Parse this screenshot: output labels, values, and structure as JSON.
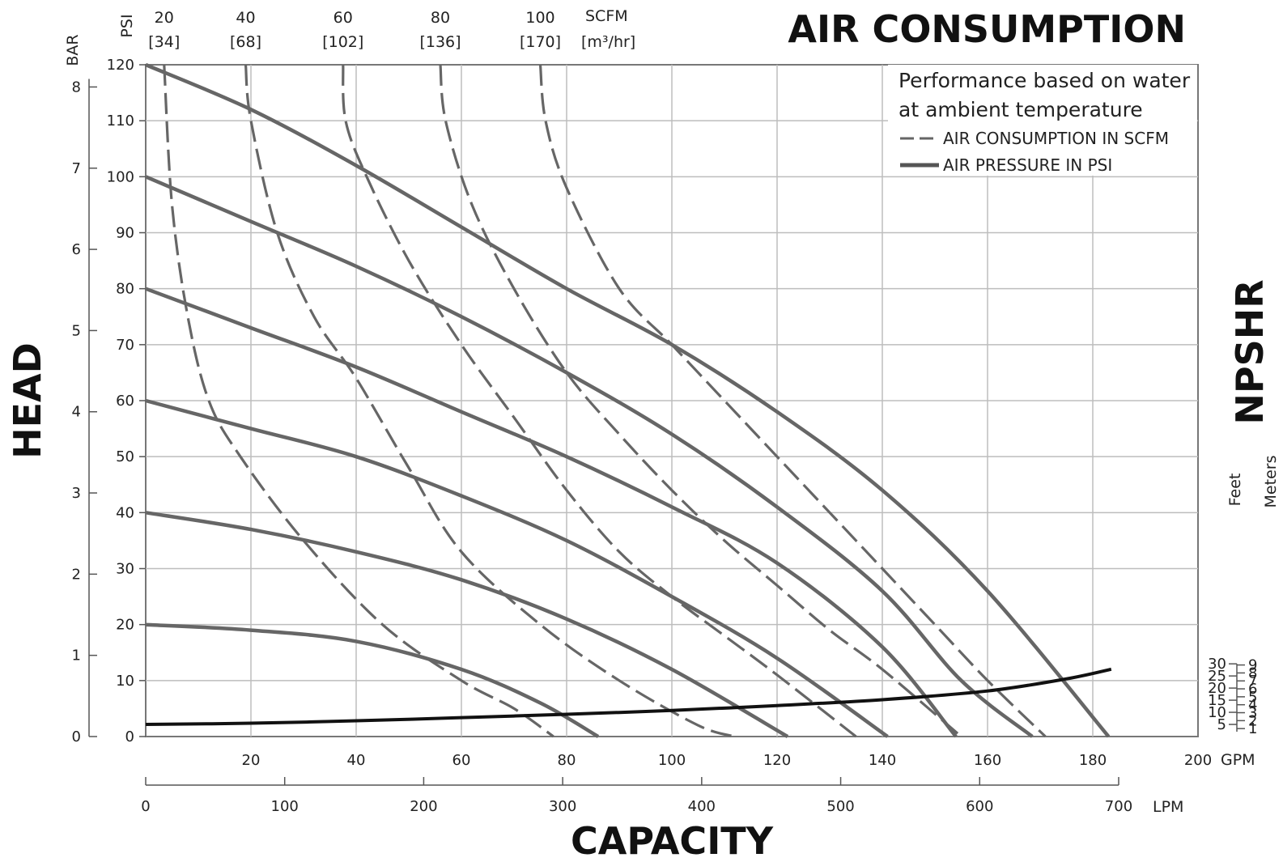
{
  "chart_data": {
    "type": "line",
    "title": "AIR CONSUMPTION",
    "note_lines": [
      "Performance based on water",
      "at ambient temperature"
    ],
    "legend": {
      "dashed": "AIR CONSUMPTION IN SCFM",
      "solid": "AIR PRESSURE IN PSI"
    },
    "xlabel": "CAPACITY",
    "ylabel": "HEAD",
    "right_label": "NPSHR",
    "x_axis_gpm": {
      "unit": "GPM",
      "ticks": [
        "20",
        "40",
        "60",
        "80",
        "100",
        "120",
        "140",
        "160",
        "180",
        "200"
      ]
    },
    "x_axis_lpm": {
      "unit": "LPM",
      "ticks": [
        "0",
        "100",
        "200",
        "300",
        "400",
        "500",
        "600",
        "700"
      ]
    },
    "y_axis_psi": {
      "unit": "PSI",
      "ticks": [
        "0",
        "10",
        "20",
        "30",
        "40",
        "50",
        "60",
        "70",
        "80",
        "90",
        "100",
        "110",
        "120"
      ]
    },
    "y_axis_bar": {
      "unit": "BAR",
      "ticks": [
        "0",
        "1",
        "2",
        "3",
        "4",
        "5",
        "6",
        "7",
        "8"
      ]
    },
    "npshr_feet": {
      "unit": "Feet",
      "ticks": [
        "5",
        "10",
        "15",
        "20",
        "25",
        "30"
      ]
    },
    "npshr_meters": {
      "unit": "Meters",
      "ticks": [
        "1",
        "2",
        "3",
        "4",
        "5",
        "6",
        "7",
        "8",
        "9"
      ]
    },
    "scfm_top": {
      "unit_top": "SCFM",
      "unit_bottom": "[m³/hr]",
      "labels": [
        {
          "scfm": "20",
          "m3hr": "[34]"
        },
        {
          "scfm": "40",
          "m3hr": "[68]"
        },
        {
          "scfm": "60",
          "m3hr": "[102]"
        },
        {
          "scfm": "80",
          "m3hr": "[136]"
        },
        {
          "scfm": "100",
          "m3hr": "[170]"
        }
      ]
    },
    "xlim_gpm": [
      0,
      200
    ],
    "ylim_psi": [
      0,
      120
    ],
    "pressure_series": [
      {
        "name": "120",
        "points": [
          [
            0,
            120
          ],
          [
            20,
            112
          ],
          [
            40,
            102
          ],
          [
            60,
            91
          ],
          [
            80,
            80
          ],
          [
            100,
            70
          ],
          [
            120,
            58
          ],
          [
            140,
            44
          ],
          [
            160,
            26
          ],
          [
            183,
            0
          ]
        ]
      },
      {
        "name": "100",
        "points": [
          [
            0,
            100
          ],
          [
            20,
            92
          ],
          [
            40,
            84
          ],
          [
            60,
            75
          ],
          [
            80,
            65
          ],
          [
            100,
            54
          ],
          [
            120,
            41
          ],
          [
            140,
            26
          ],
          [
            155,
            10
          ],
          [
            168.5,
            0
          ]
        ]
      },
      {
        "name": "80",
        "points": [
          [
            0,
            80
          ],
          [
            20,
            73
          ],
          [
            40,
            66
          ],
          [
            60,
            58
          ],
          [
            80,
            50
          ],
          [
            100,
            41
          ],
          [
            120,
            31
          ],
          [
            140,
            16
          ],
          [
            154,
            0
          ]
        ]
      },
      {
        "name": "60",
        "points": [
          [
            0,
            60
          ],
          [
            20,
            55
          ],
          [
            40,
            50
          ],
          [
            60,
            43
          ],
          [
            80,
            35
          ],
          [
            100,
            25
          ],
          [
            120,
            14
          ],
          [
            141,
            0
          ]
        ]
      },
      {
        "name": "40",
        "points": [
          [
            0,
            40
          ],
          [
            20,
            37
          ],
          [
            40,
            33
          ],
          [
            60,
            28
          ],
          [
            80,
            21
          ],
          [
            100,
            12
          ],
          [
            122,
            0
          ]
        ]
      },
      {
        "name": "20",
        "points": [
          [
            0,
            20
          ],
          [
            20,
            19
          ],
          [
            40,
            17
          ],
          [
            60,
            12
          ],
          [
            75,
            6
          ],
          [
            86,
            0
          ]
        ]
      }
    ],
    "consumption_series": [
      {
        "name": "20",
        "points": [
          [
            3.5,
            120
          ],
          [
            5,
            95
          ],
          [
            8,
            75
          ],
          [
            12,
            60
          ],
          [
            18,
            50
          ],
          [
            30,
            35
          ],
          [
            45,
            20
          ],
          [
            60,
            10
          ],
          [
            70,
            5
          ],
          [
            77.5,
            0
          ]
        ]
      },
      {
        "name": "40",
        "points": [
          [
            19,
            120
          ],
          [
            20,
            110
          ],
          [
            25,
            90
          ],
          [
            32,
            75
          ],
          [
            40,
            64
          ],
          [
            50,
            48
          ],
          [
            60,
            33
          ],
          [
            75,
            20
          ],
          [
            90,
            10
          ],
          [
            105,
            2
          ],
          [
            112,
            0
          ]
        ]
      },
      {
        "name": "60",
        "points": [
          [
            37.5,
            120
          ],
          [
            38,
            110
          ],
          [
            42,
            100
          ],
          [
            50,
            85
          ],
          [
            60,
            70
          ],
          [
            70,
            57
          ],
          [
            80,
            44
          ],
          [
            90,
            33
          ],
          [
            100,
            25
          ],
          [
            110,
            18
          ],
          [
            120,
            11
          ],
          [
            135,
            0
          ]
        ]
      },
      {
        "name": "80",
        "points": [
          [
            56,
            120
          ],
          [
            57,
            110
          ],
          [
            62,
            95
          ],
          [
            70,
            80
          ],
          [
            80,
            65
          ],
          [
            90,
            54
          ],
          [
            100,
            44
          ],
          [
            110,
            35
          ],
          [
            120,
            27
          ],
          [
            130,
            19
          ],
          [
            140,
            12
          ],
          [
            155,
            0
          ]
        ]
      },
      {
        "name": "100",
        "points": [
          [
            75,
            120
          ],
          [
            76,
            110
          ],
          [
            80,
            98
          ],
          [
            90,
            80
          ],
          [
            100,
            70
          ],
          [
            110,
            60
          ],
          [
            120,
            50
          ],
          [
            130,
            40
          ],
          [
            140,
            30
          ],
          [
            150,
            20
          ],
          [
            160,
            10
          ],
          [
            171,
            0
          ]
        ]
      }
    ],
    "npshr_curve": {
      "points_gpm_ft": [
        [
          0,
          5
        ],
        [
          20,
          5.5
        ],
        [
          40,
          6.5
        ],
        [
          60,
          7.8
        ],
        [
          80,
          9.2
        ],
        [
          100,
          10.8
        ],
        [
          120,
          12.8
        ],
        [
          140,
          15.2
        ],
        [
          160,
          18.8
        ],
        [
          175,
          23.8
        ],
        [
          183.5,
          27.8
        ]
      ]
    }
  }
}
